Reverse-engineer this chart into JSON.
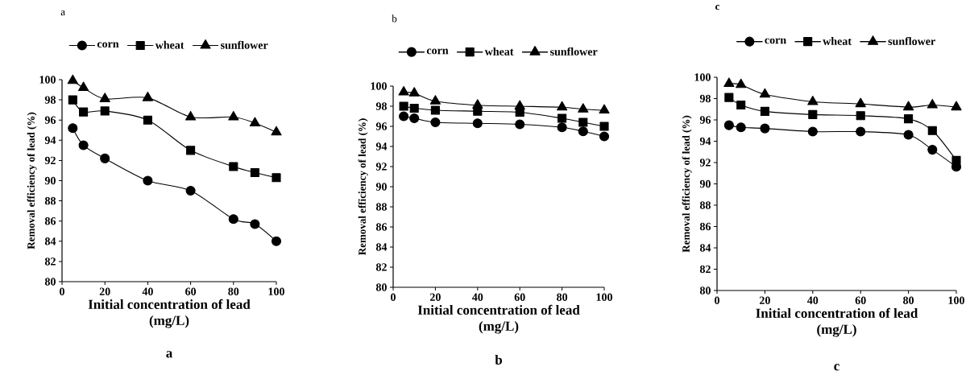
{
  "chart_data": [
    {
      "type": "line",
      "title": "a",
      "xlabel": "Initial concentration of lead (mg/L)",
      "ylabel": "Removal efficiency of lead (%)",
      "x": [
        5,
        10,
        20,
        40,
        60,
        80,
        90,
        100
      ],
      "xlim": [
        0,
        100
      ],
      "xticks": [
        0,
        20,
        40,
        60,
        80,
        100
      ],
      "ylim": [
        80,
        100
      ],
      "yticks": [
        80,
        82,
        84,
        86,
        88,
        90,
        92,
        94,
        96,
        98,
        100
      ],
      "legend": "top",
      "grid": false,
      "annotations": [
        "a"
      ],
      "series": [
        {
          "name": "corn",
          "color": "#000000",
          "marker": "circle",
          "values": [
            95.2,
            93.5,
            92.2,
            90.0,
            89.0,
            86.2,
            85.7,
            84.0
          ]
        },
        {
          "name": "wheat",
          "color": "#000000",
          "marker": "square",
          "values": [
            98.0,
            96.8,
            96.9,
            96.0,
            93.0,
            91.4,
            90.8,
            90.3
          ]
        },
        {
          "name": "sunflower",
          "color": "#000000",
          "marker": "triangle",
          "values": [
            99.9,
            99.2,
            98.1,
            98.2,
            96.3,
            96.3,
            95.7,
            94.8
          ]
        }
      ]
    },
    {
      "type": "line",
      "title": "b",
      "xlabel": "Initial concentration of lead (mg/L)",
      "ylabel": "Removal efficiency of lead (%)",
      "x": [
        5,
        10,
        20,
        40,
        60,
        80,
        90,
        100
      ],
      "xlim": [
        0,
        100
      ],
      "xticks": [
        0,
        20,
        40,
        60,
        80,
        100
      ],
      "ylim": [
        80,
        100
      ],
      "yticks": [
        80,
        82,
        84,
        86,
        88,
        90,
        92,
        94,
        96,
        98,
        100
      ],
      "legend": "top",
      "grid": false,
      "annotations": [
        "b"
      ],
      "series": [
        {
          "name": "corn",
          "color": "#000000",
          "marker": "circle",
          "values": [
            97.0,
            96.8,
            96.4,
            96.3,
            96.2,
            95.9,
            95.5,
            95.0
          ]
        },
        {
          "name": "wheat",
          "color": "#000000",
          "marker": "square",
          "values": [
            98.0,
            97.8,
            97.6,
            97.5,
            97.4,
            96.8,
            96.4,
            96.0
          ]
        },
        {
          "name": "sunflower",
          "color": "#000000",
          "marker": "triangle",
          "values": [
            99.4,
            99.3,
            98.5,
            98.1,
            98.0,
            97.9,
            97.7,
            97.6
          ]
        }
      ]
    },
    {
      "type": "line",
      "title": "c",
      "xlabel": "Initial concentration of lead (mg/L)",
      "ylabel": "Removal efficiency of lead (%)",
      "x": [
        5,
        10,
        20,
        40,
        60,
        80,
        90,
        100
      ],
      "xlim": [
        0,
        100
      ],
      "xticks": [
        0,
        20,
        40,
        60,
        80,
        100
      ],
      "ylim": [
        80,
        100
      ],
      "yticks": [
        80,
        82,
        84,
        86,
        88,
        90,
        92,
        94,
        96,
        98,
        100
      ],
      "legend": "top",
      "grid": false,
      "annotations": [
        "c"
      ],
      "series": [
        {
          "name": "corn",
          "color": "#000000",
          "marker": "circle",
          "values": [
            95.5,
            95.3,
            95.2,
            94.9,
            94.9,
            94.6,
            93.2,
            91.6
          ]
        },
        {
          "name": "wheat",
          "color": "#000000",
          "marker": "square",
          "values": [
            98.1,
            97.4,
            96.8,
            96.5,
            96.4,
            96.1,
            95.0,
            92.2
          ]
        },
        {
          "name": "sunflower",
          "color": "#000000",
          "marker": "triangle",
          "values": [
            99.4,
            99.3,
            98.4,
            97.7,
            97.5,
            97.2,
            97.4,
            97.2
          ]
        }
      ]
    }
  ]
}
